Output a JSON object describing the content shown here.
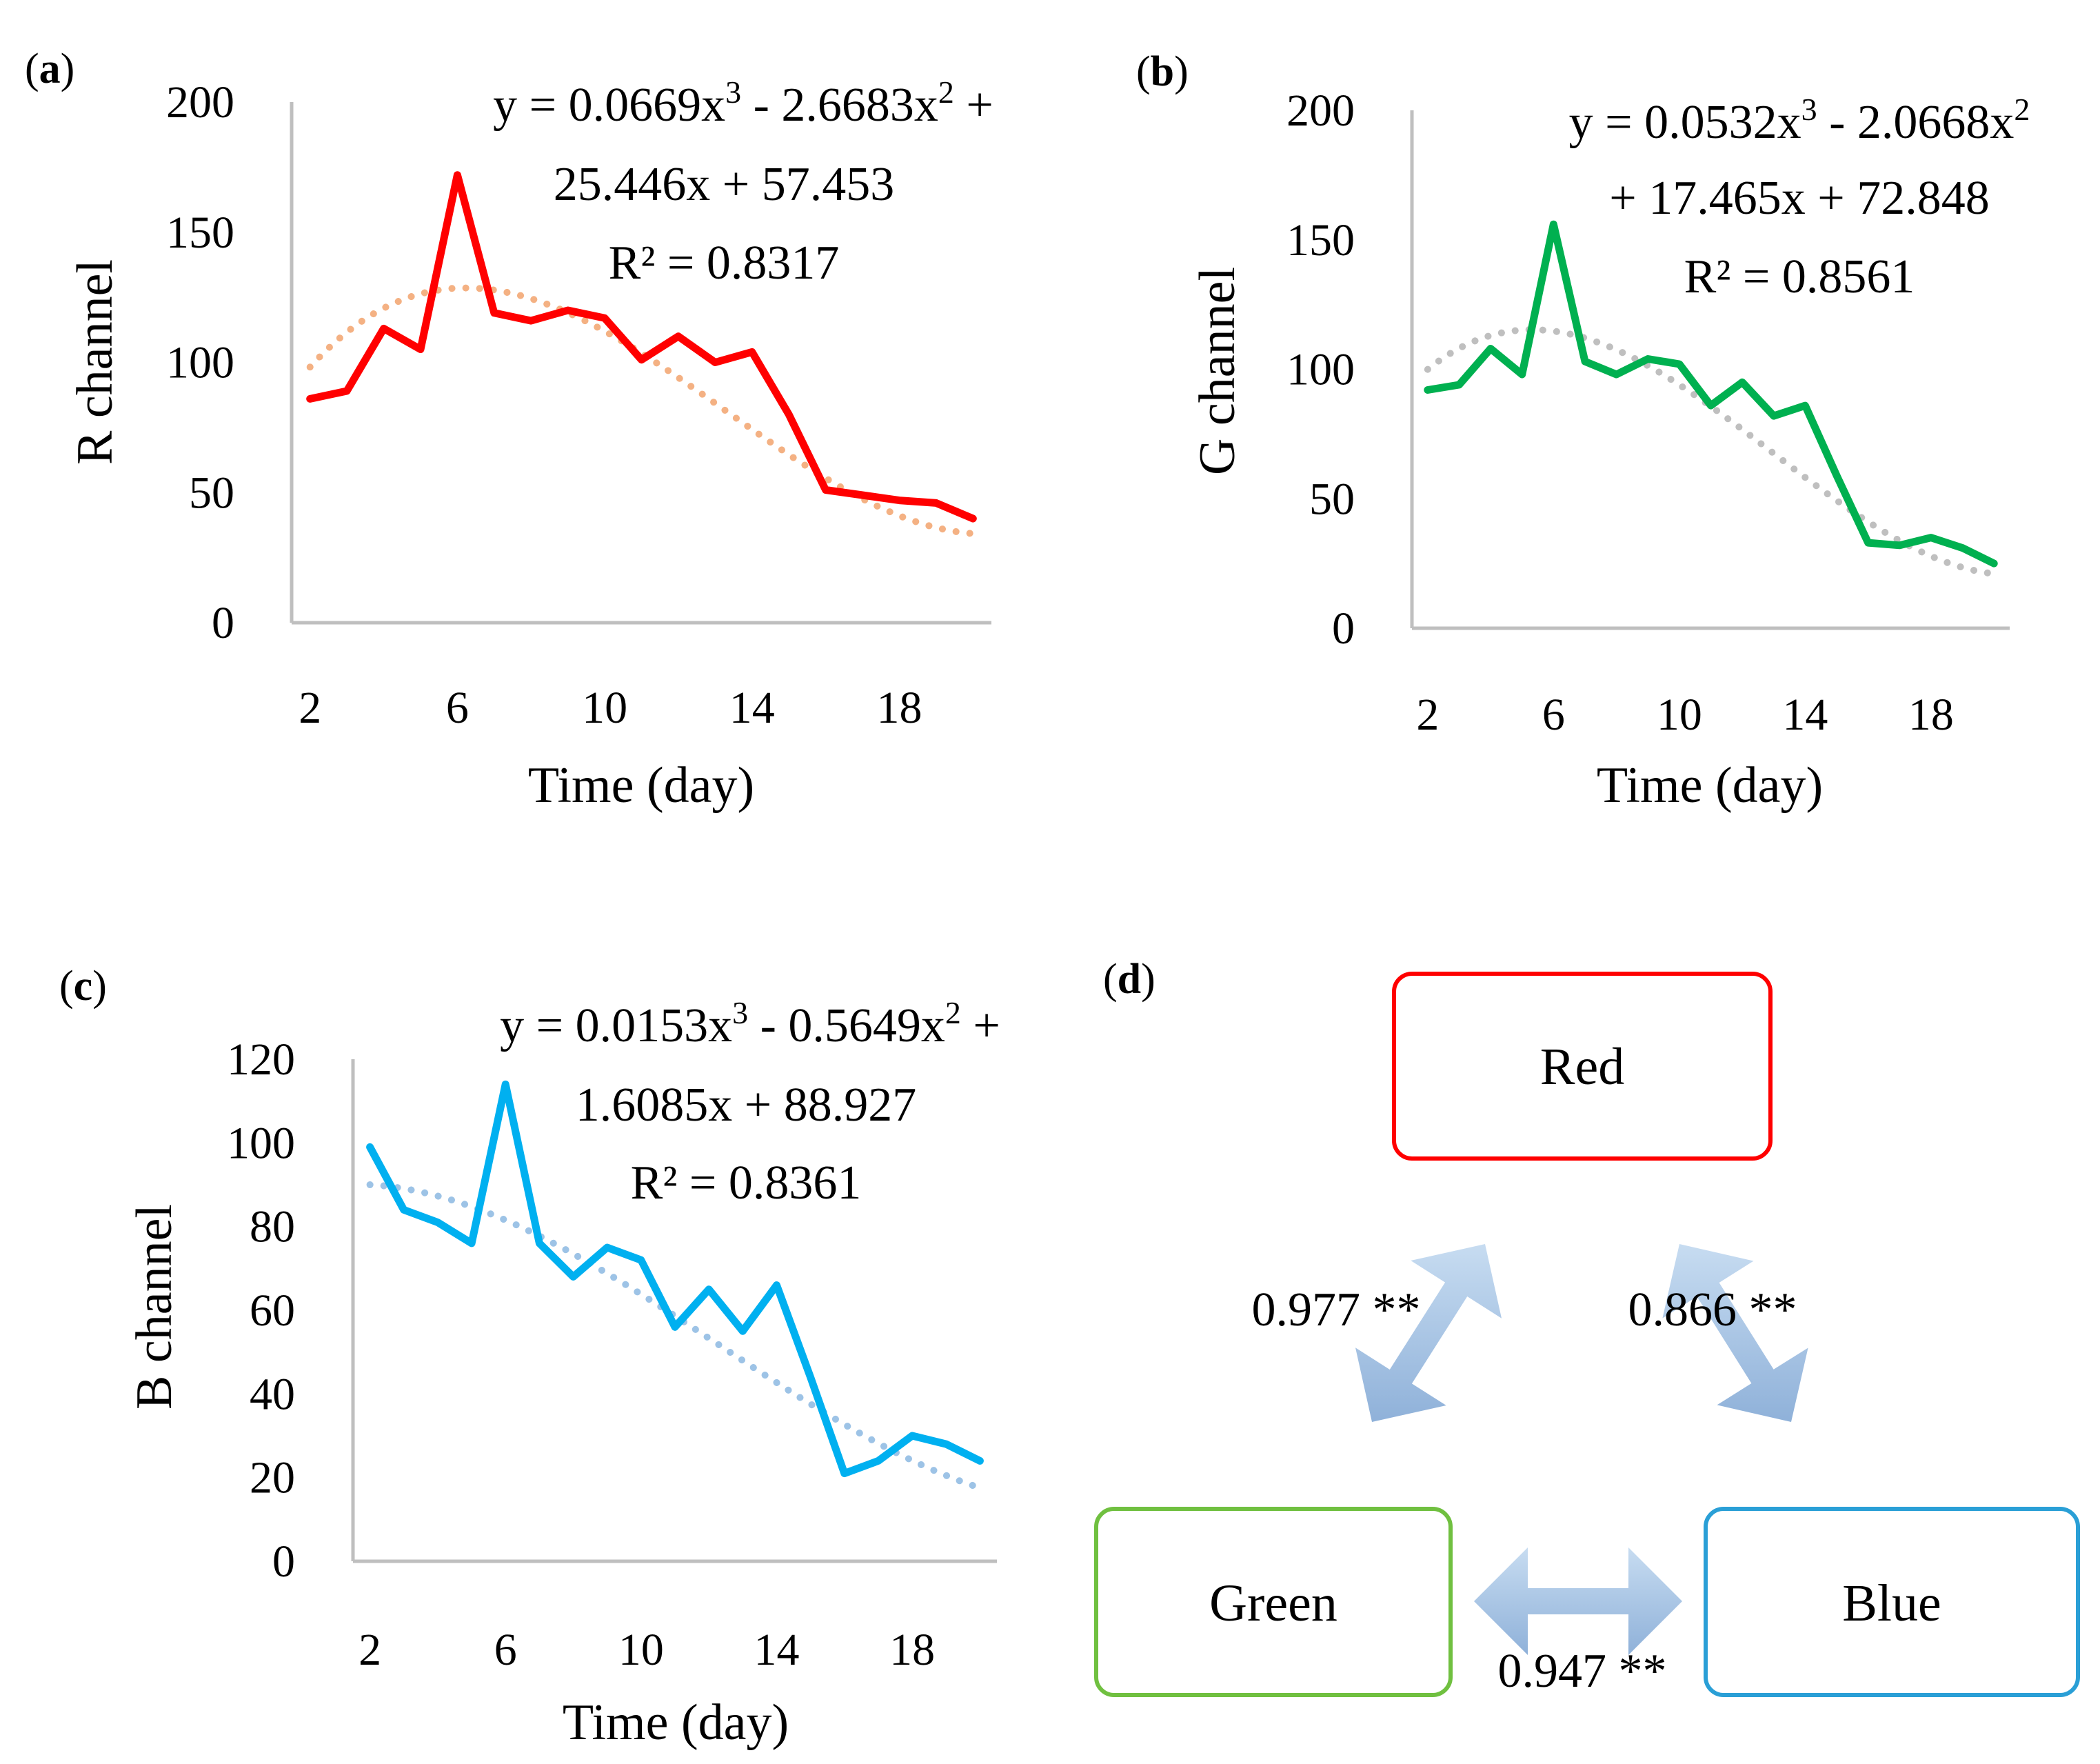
{
  "chart_data": [
    {
      "panel": "(a)",
      "type": "line",
      "title": "",
      "xlabel": "Time (day)",
      "ylabel": "R channel",
      "xlim": [
        1.5,
        20.5
      ],
      "ylim": [
        0,
        200
      ],
      "x_ticks": [
        2,
        6,
        10,
        14,
        18
      ],
      "y_ticks": [
        0,
        50,
        100,
        150,
        200
      ],
      "x": [
        2,
        3,
        4,
        5,
        6,
        7,
        8,
        9,
        10,
        11,
        12,
        13,
        14,
        15,
        16,
        17,
        18,
        19,
        20
      ],
      "series": [
        {
          "name": "R channel",
          "color": "#ff0000",
          "style": "solid",
          "values": [
            86,
            89,
            113,
            105,
            172,
            119,
            116,
            120,
            117,
            101,
            110,
            100,
            104,
            80,
            51,
            49,
            47,
            46,
            40
          ]
        }
      ],
      "trendline": {
        "color": "#f4b183",
        "style": "dotted",
        "coefficients": [
          0.0669,
          -2.6683,
          25.446,
          57.453
        ]
      },
      "equation_lines": [
        "y = 0.0669x³ - 2.6683x² +",
        "25.446x + 57.453",
        "R² = 0.8317"
      ]
    },
    {
      "panel": "(b)",
      "type": "line",
      "title": "",
      "xlabel": "Time (day)",
      "ylabel": "G channel",
      "xlim": [
        1.5,
        20.5
      ],
      "ylim": [
        0,
        200
      ],
      "x_ticks": [
        2,
        6,
        10,
        14,
        18
      ],
      "y_ticks": [
        0,
        50,
        100,
        150,
        200
      ],
      "x": [
        2,
        3,
        4,
        5,
        6,
        7,
        8,
        9,
        10,
        11,
        12,
        13,
        14,
        15,
        16,
        17,
        18,
        19,
        20
      ],
      "series": [
        {
          "name": "G channel",
          "color": "#00b050",
          "style": "solid",
          "values": [
            92,
            94,
            108,
            98,
            156,
            103,
            98,
            104,
            102,
            86,
            95,
            82,
            86,
            59,
            33,
            32,
            35,
            31,
            25
          ]
        }
      ],
      "trendline": {
        "color": "#bfbfbf",
        "style": "dotted",
        "coefficients": [
          0.0532,
          -2.0668,
          17.465,
          72.848
        ]
      },
      "equation_lines": [
        "y = 0.0532x³ - 2.0668x²",
        "+ 17.465x + 72.848",
        "R² = 0.8561"
      ]
    },
    {
      "panel": "(c)",
      "type": "line",
      "title": "",
      "xlabel": "Time (day)",
      "ylabel": "B channel",
      "xlim": [
        1.5,
        20.5
      ],
      "ylim": [
        0,
        120
      ],
      "x_ticks": [
        2,
        6,
        10,
        14,
        18
      ],
      "y_ticks": [
        0,
        20,
        40,
        60,
        80,
        100,
        120
      ],
      "x": [
        2,
        3,
        4,
        5,
        6,
        7,
        8,
        9,
        10,
        11,
        12,
        13,
        14,
        15,
        16,
        17,
        18,
        19,
        20
      ],
      "series": [
        {
          "name": "B channel",
          "color": "#00b0f0",
          "style": "solid",
          "values": [
            99,
            84,
            81,
            76,
            114,
            76,
            68,
            75,
            72,
            56,
            65,
            55,
            66,
            44,
            21,
            24,
            30,
            28,
            24
          ]
        }
      ],
      "trendline": {
        "color": "#9dc3e6",
        "style": "dotted",
        "coefficients": [
          0.0153,
          -0.5649,
          1.6085,
          88.927
        ]
      },
      "equation_lines": [
        "y = 0.0153x³ - 0.5649x² +",
        "1.6085x + 88.927",
        "R² = 0.8361"
      ]
    }
  ],
  "correlation_panel": {
    "panel": "(d)",
    "nodes": {
      "red": {
        "label": "Red",
        "color": "#ff0000"
      },
      "green": {
        "label": "Green",
        "color": "#70c040"
      },
      "blue": {
        "label": "Blue",
        "color": "#2a9fd6"
      }
    },
    "links": {
      "red_green": "0.977 **",
      "red_blue": "0.866 **",
      "green_blue": "0.947 **"
    },
    "arrow_color": "#9fbfe0"
  }
}
